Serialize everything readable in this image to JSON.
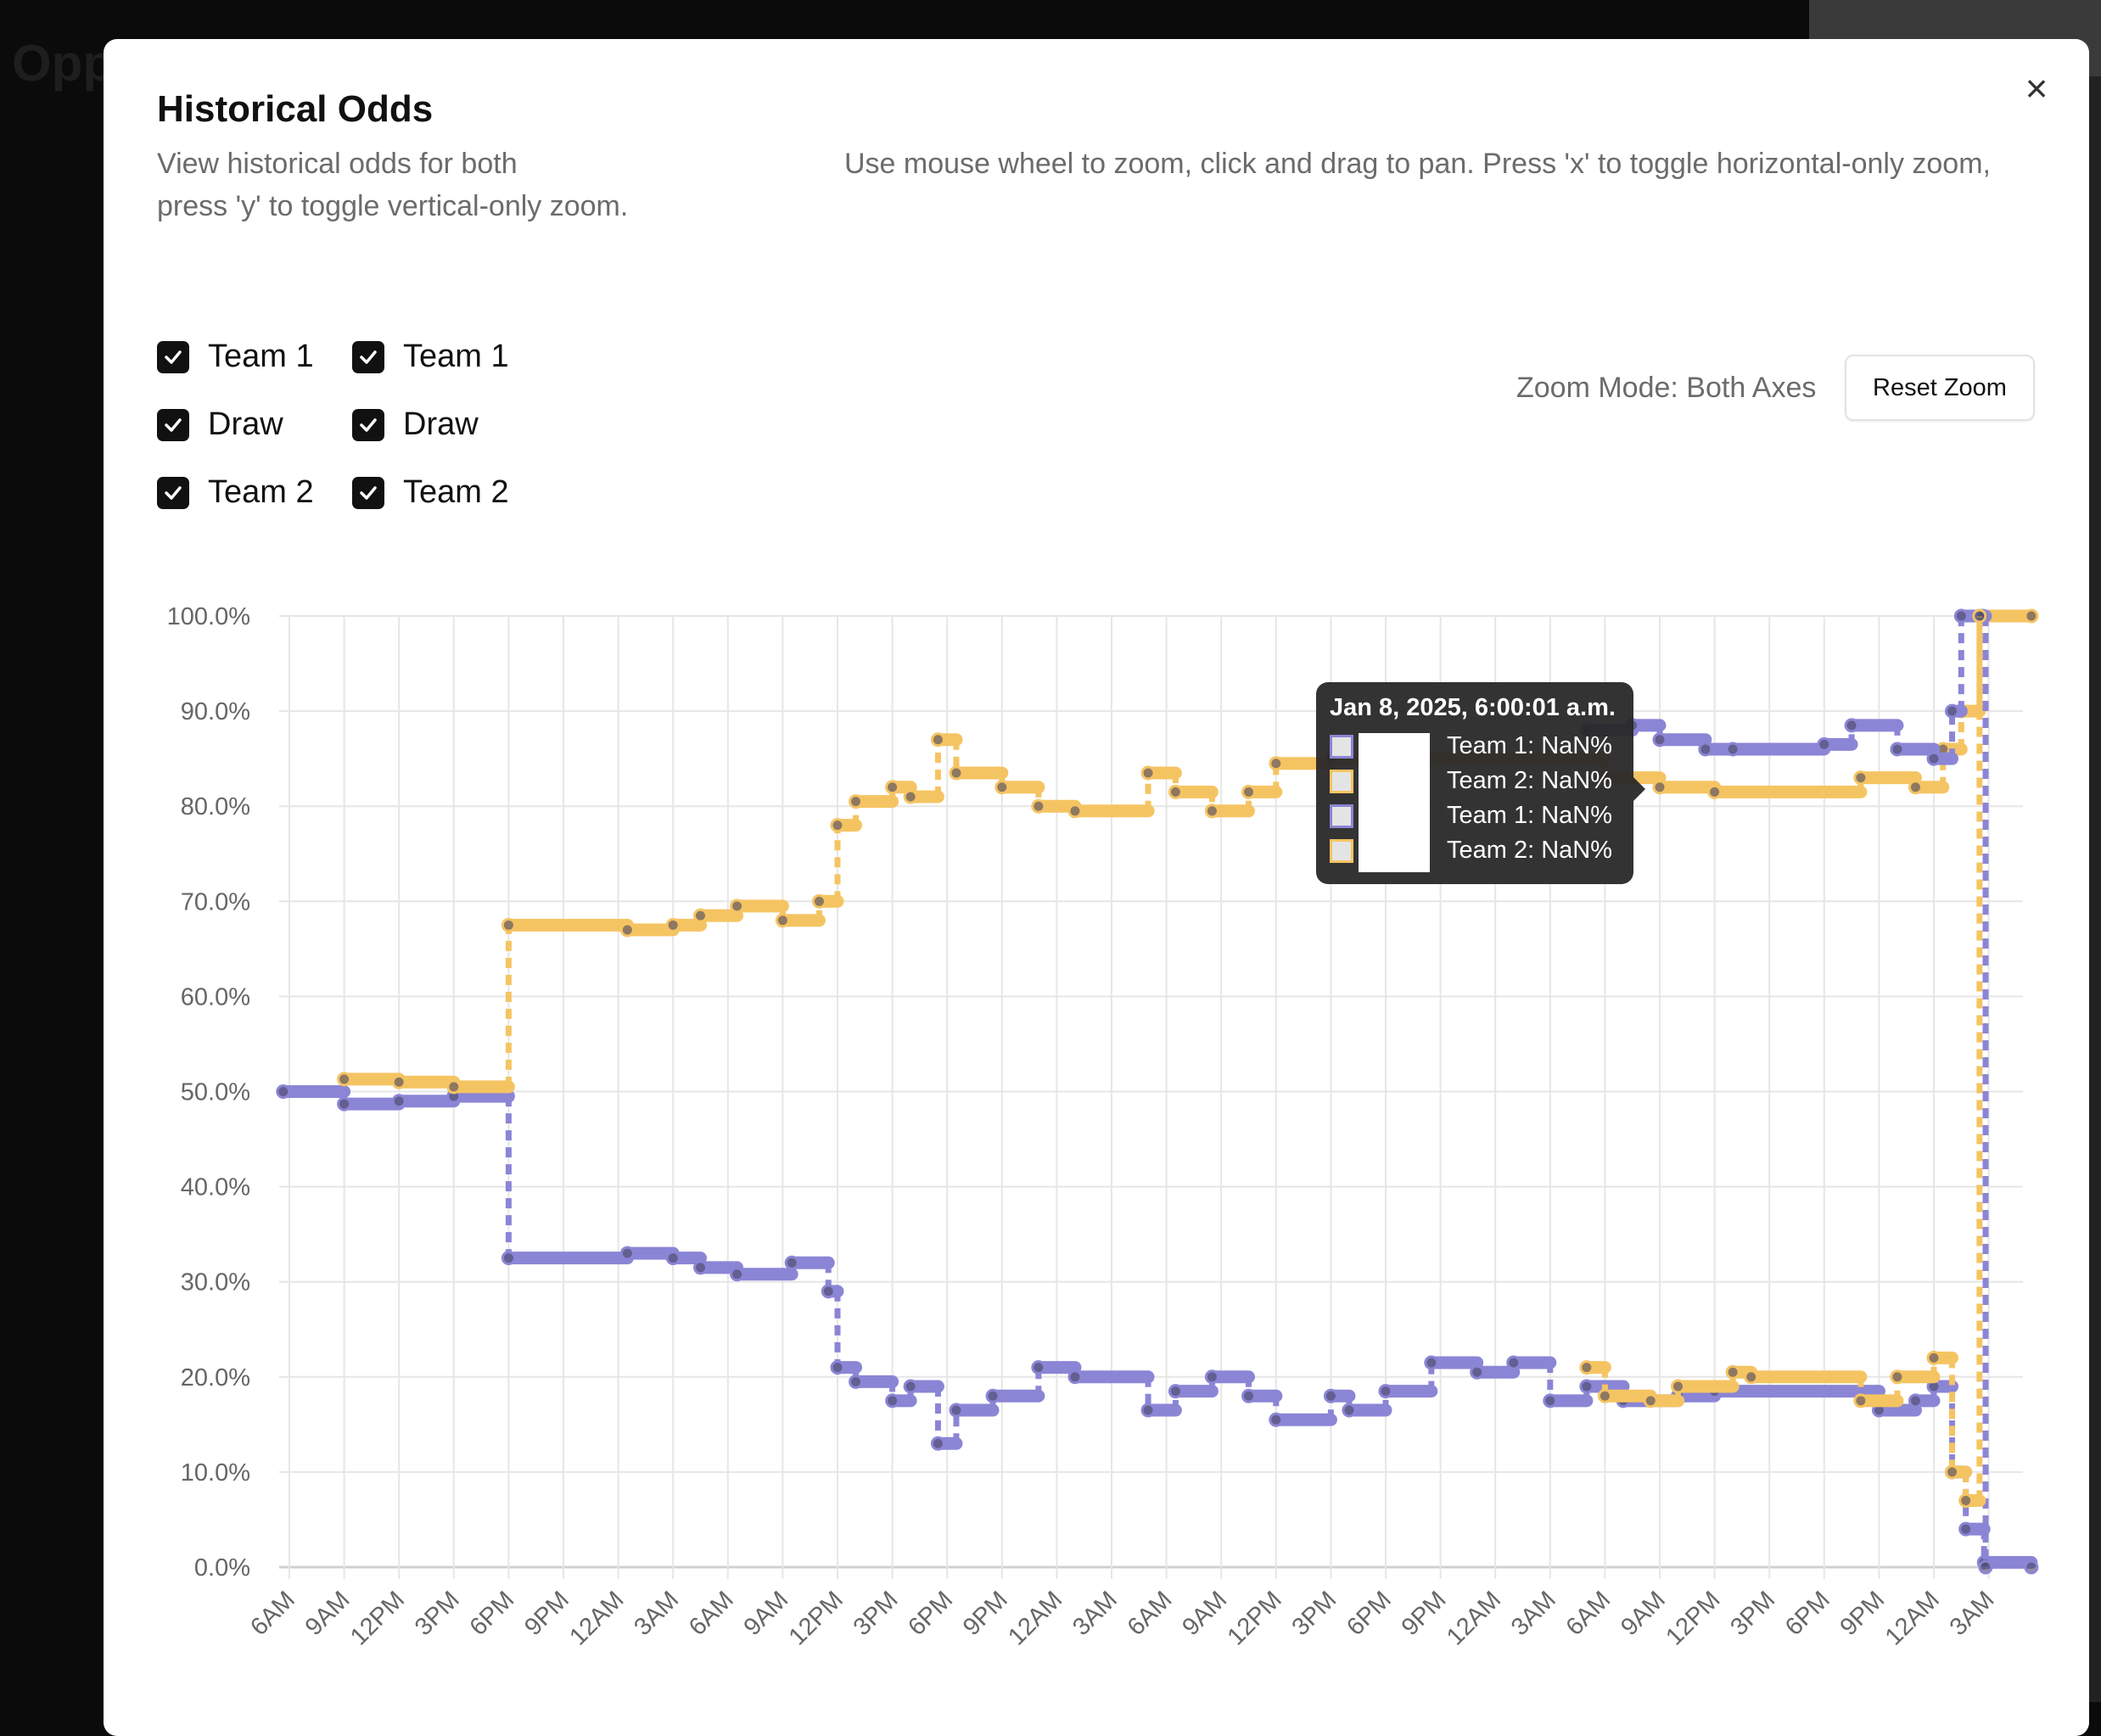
{
  "background": {
    "partial_text": "Opp"
  },
  "modal": {
    "title": "Historical Odds",
    "description_left": "View historical odds for both",
    "description_right": "Use mouse wheel to zoom, click and drag to pan. Press 'x' to toggle horizontal-only zoom,",
    "description_line2": "press 'y' to toggle vertical-only zoom.",
    "close_icon": "close-icon",
    "zoom_mode": "Zoom Mode: Both Axes",
    "reset_zoom": "Reset Zoom",
    "checkboxes": [
      [
        {
          "label": "Team 1",
          "checked": true
        },
        {
          "label": "Draw",
          "checked": true
        },
        {
          "label": "Team 2",
          "checked": true
        }
      ],
      [
        {
          "label": "Team 1",
          "checked": true
        },
        {
          "label": "Draw",
          "checked": true
        },
        {
          "label": "Team 2",
          "checked": true
        }
      ]
    ]
  },
  "tooltip": {
    "title": "Jan 8, 2025, 6:00:01 a.m.",
    "rows": [
      {
        "text": "Team 1: NaN%",
        "color": "#8b85d6"
      },
      {
        "text": "Team 2: NaN%",
        "color": "#f5c462"
      },
      {
        "text": "Team 1: NaN%",
        "color": "#8b85d6"
      },
      {
        "text": "Team 2: NaN%",
        "color": "#f5c462"
      }
    ]
  },
  "chart_data": {
    "type": "line",
    "step": true,
    "grid": true,
    "ylim": [
      0,
      100
    ],
    "yticks": [
      "0.0%",
      "10.0%",
      "20.0%",
      "30.0%",
      "40.0%",
      "50.0%",
      "60.0%",
      "70.0%",
      "80.0%",
      "90.0%",
      "100.0%"
    ],
    "xrange": [
      "2025-01-05T06:00",
      "2025-01-09T05:20"
    ],
    "xticks": [
      "6AM",
      "9AM",
      "12PM",
      "3PM",
      "6PM",
      "9PM",
      "12AM",
      "3AM",
      "6AM",
      "9AM",
      "12PM",
      "3PM",
      "6PM",
      "9PM",
      "12AM",
      "3AM",
      "6AM",
      "9AM",
      "12PM",
      "3PM",
      "6PM",
      "9PM",
      "12AM",
      "3AM",
      "6AM",
      "9AM",
      "12PM",
      "3PM",
      "6PM",
      "9PM",
      "12AM",
      "3AM"
    ],
    "series": [
      {
        "name": "Team 1",
        "color": "#8b85d6",
        "points": [
          [
            "2025-01-05T05:40",
            50
          ],
          [
            "2025-01-05T09:00",
            48.7
          ],
          [
            "2025-01-05T12:00",
            49
          ],
          [
            "2025-01-05T15:00",
            49.5
          ],
          [
            "2025-01-05T18:00",
            32.5
          ],
          [
            "2025-01-06T00:30",
            33
          ],
          [
            "2025-01-06T03:00",
            32.5
          ],
          [
            "2025-01-06T04:30",
            31.5
          ],
          [
            "2025-01-06T06:30",
            30.8
          ],
          [
            "2025-01-06T09:30",
            32
          ],
          [
            "2025-01-06T11:30",
            29
          ],
          [
            "2025-01-06T12:00",
            21
          ],
          [
            "2025-01-06T13:00",
            19.5
          ],
          [
            "2025-01-06T15:00",
            17.5
          ],
          [
            "2025-01-06T16:00",
            19
          ],
          [
            "2025-01-06T17:30",
            13
          ],
          [
            "2025-01-06T18:30",
            16.5
          ],
          [
            "2025-01-06T20:30",
            18
          ],
          [
            "2025-01-06T23:00",
            21
          ],
          [
            "2025-01-07T01:00",
            20
          ],
          [
            "2025-01-07T05:00",
            16.5
          ],
          [
            "2025-01-07T06:30",
            18.5
          ],
          [
            "2025-01-07T08:30",
            20
          ],
          [
            "2025-01-07T10:30",
            18
          ],
          [
            "2025-01-07T12:00",
            15.5
          ],
          [
            "2025-01-07T15:00",
            18
          ],
          [
            "2025-01-07T16:00",
            16.5
          ],
          [
            "2025-01-07T18:00",
            18.5
          ],
          [
            "2025-01-07T20:30",
            21.5
          ],
          [
            "2025-01-07T23:00",
            20.5
          ],
          [
            "2025-01-08T01:00",
            21.5
          ],
          [
            "2025-01-08T03:00",
            17.5
          ],
          [
            "2025-01-08T05:00",
            19
          ],
          [
            "2025-01-08T07:00",
            17.5
          ],
          [
            "2025-01-08T10:00",
            18
          ],
          [
            "2025-01-08T12:00",
            18.5
          ],
          [
            "2025-01-08T21:00",
            16.5
          ],
          [
            "2025-01-08T23:00",
            17.5
          ],
          [
            "2025-01-09T00:00",
            19
          ],
          [
            "2025-01-09T01:00",
            10
          ],
          [
            "2025-01-09T01:45",
            4
          ],
          [
            "2025-01-09T02:45",
            0.5
          ],
          [
            "2025-01-09T05:20",
            0
          ]
        ]
      },
      {
        "name": "Team 2",
        "color": "#f5c462",
        "points": [
          [
            "2025-01-05T09:00",
            51.3
          ],
          [
            "2025-01-05T12:00",
            51
          ],
          [
            "2025-01-05T15:00",
            50.5
          ],
          [
            "2025-01-05T18:00",
            67.5
          ],
          [
            "2025-01-06T00:30",
            67
          ],
          [
            "2025-01-06T03:00",
            67.5
          ],
          [
            "2025-01-06T04:30",
            68.5
          ],
          [
            "2025-01-06T06:30",
            69.5
          ],
          [
            "2025-01-06T09:00",
            68
          ],
          [
            "2025-01-06T11:00",
            70
          ],
          [
            "2025-01-06T12:00",
            78
          ],
          [
            "2025-01-06T13:00",
            80.5
          ],
          [
            "2025-01-06T15:00",
            82
          ],
          [
            "2025-01-06T16:00",
            81
          ],
          [
            "2025-01-06T17:30",
            87
          ],
          [
            "2025-01-06T18:30",
            83.5
          ],
          [
            "2025-01-06T21:00",
            82
          ],
          [
            "2025-01-06T23:00",
            80
          ],
          [
            "2025-01-07T01:00",
            79.5
          ],
          [
            "2025-01-07T05:00",
            83.5
          ],
          [
            "2025-01-07T06:30",
            81.5
          ],
          [
            "2025-01-07T08:30",
            79.5
          ],
          [
            "2025-01-07T10:30",
            81.5
          ],
          [
            "2025-01-07T12:00",
            84.5
          ],
          [
            "2025-01-07T15:00",
            85
          ],
          [
            "2025-01-08T06:00",
            83
          ],
          [
            "2025-01-08T09:00",
            82
          ],
          [
            "2025-01-08T12:00",
            81.5
          ],
          [
            "2025-01-08T20:00",
            83
          ],
          [
            "2025-01-08T23:00",
            82
          ],
          [
            "2025-01-09T00:30",
            86
          ],
          [
            "2025-01-09T01:30",
            90
          ],
          [
            "2025-01-09T02:30",
            100
          ],
          [
            "2025-01-09T05:20",
            100
          ]
        ]
      },
      {
        "name": "Team 1",
        "color": "#8b85d6",
        "points": [
          [
            "2025-01-08T05:00",
            88
          ],
          [
            "2025-01-08T07:30",
            88.5
          ],
          [
            "2025-01-08T09:00",
            87
          ],
          [
            "2025-01-08T11:30",
            86
          ],
          [
            "2025-01-08T13:00",
            86
          ],
          [
            "2025-01-08T18:00",
            86.5
          ],
          [
            "2025-01-08T19:30",
            88.5
          ],
          [
            "2025-01-08T22:00",
            86
          ],
          [
            "2025-01-09T00:00",
            85
          ],
          [
            "2025-01-09T01:00",
            90
          ],
          [
            "2025-01-09T01:30",
            100
          ],
          [
            "2025-01-09T02:40",
            100
          ],
          [
            "2025-01-09T02:50",
            0
          ]
        ]
      },
      {
        "name": "Team 2",
        "color": "#f5c462",
        "points": [
          [
            "2025-01-08T05:00",
            21
          ],
          [
            "2025-01-08T06:00",
            18
          ],
          [
            "2025-01-08T08:30",
            17.5
          ],
          [
            "2025-01-08T10:00",
            19
          ],
          [
            "2025-01-08T13:00",
            20.5
          ],
          [
            "2025-01-08T14:00",
            20
          ],
          [
            "2025-01-08T20:00",
            17.5
          ],
          [
            "2025-01-08T22:00",
            20
          ],
          [
            "2025-01-09T00:00",
            22
          ],
          [
            "2025-01-09T01:00",
            10
          ],
          [
            "2025-01-09T01:45",
            7
          ],
          [
            "2025-01-09T02:30",
            100
          ]
        ]
      }
    ]
  }
}
